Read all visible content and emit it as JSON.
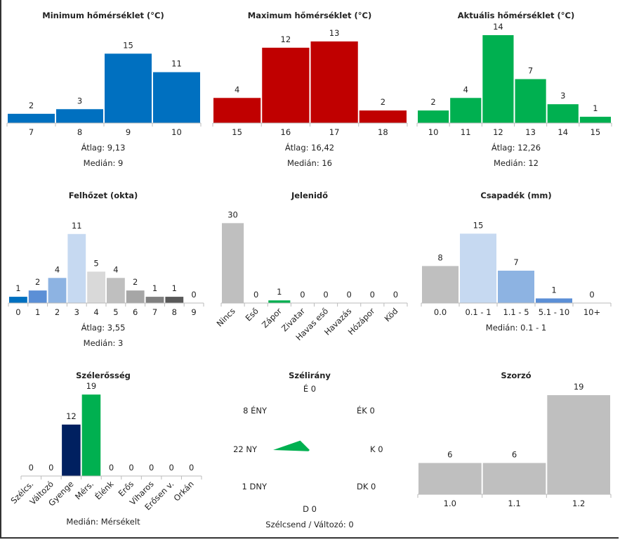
{
  "chart_data": [
    {
      "type": "bar",
      "title": "Minimum hőmérséklet (°C)",
      "categories": [
        "7",
        "8",
        "9",
        "10"
      ],
      "values": [
        2,
        3,
        15,
        11
      ],
      "colors": [
        "#0070c0",
        "#0070c0",
        "#0070c0",
        "#0070c0"
      ],
      "ylim": [
        0,
        19
      ],
      "stats": [
        "Átlag:  9,13",
        "Medián:  9"
      ]
    },
    {
      "type": "bar",
      "title": "Maximum hőmérséklet (°C)",
      "categories": [
        "15",
        "16",
        "17",
        "18"
      ],
      "values": [
        4,
        12,
        13,
        2
      ],
      "colors": [
        "#c00000",
        "#c00000",
        "#c00000",
        "#c00000"
      ],
      "ylim": [
        0,
        14
      ],
      "stats": [
        "Átlag:  16,42",
        "Medián:  16"
      ]
    },
    {
      "type": "bar",
      "title": "Aktuális hőmérséklet (°C)",
      "categories": [
        "10",
        "11",
        "12",
        "13",
        "14",
        "15"
      ],
      "values": [
        2,
        4,
        14,
        7,
        3,
        1
      ],
      "colors": [
        "#00b050",
        "#00b050",
        "#00b050",
        "#00b050",
        "#00b050",
        "#00b050"
      ],
      "ylim": [
        0,
        14
      ],
      "stats": [
        "Átlag:  12,26",
        "Medián:  12"
      ]
    },
    {
      "type": "bar",
      "title": "Felhőzet (okta)",
      "categories": [
        "0",
        "1",
        "2",
        "3",
        "4",
        "5",
        "6",
        "7",
        "8",
        "9"
      ],
      "values": [
        1,
        2,
        4,
        11,
        5,
        4,
        2,
        1,
        1,
        0
      ],
      "colors": [
        "#0070c0",
        "#5b8fd6",
        "#8db3e2",
        "#c6d9f1",
        "#d9d9d9",
        "#bfbfbf",
        "#a6a6a6",
        "#808080",
        "#595959",
        "#404040"
      ],
      "ylim": [
        0,
        14
      ],
      "stats": [
        "Átlag:  3,55",
        "Medián:  3"
      ]
    },
    {
      "type": "bar",
      "title": "Jelenidő",
      "categories": [
        "Nincs",
        "Eső",
        "Zápor",
        "Zivatar",
        "Havas eső",
        "Havazás",
        "Hózápor",
        "Köd"
      ],
      "values": [
        30,
        0,
        1,
        0,
        0,
        0,
        0,
        0
      ],
      "colors": [
        "#bfbfbf",
        "#bfbfbf",
        "#00b050",
        "#bfbfbf",
        "#bfbfbf",
        "#bfbfbf",
        "#bfbfbf",
        "#bfbfbf"
      ],
      "ylim": [
        0,
        33
      ],
      "rotated": true,
      "stats": []
    },
    {
      "type": "bar",
      "title": "Csapadék (mm)",
      "categories": [
        "0.0",
        "0.1 - 1",
        "1.1 - 5",
        "5.1 - 10",
        "10+"
      ],
      "values": [
        8,
        15,
        7,
        1,
        0
      ],
      "colors": [
        "#bfbfbf",
        "#c6d9f1",
        "#8db3e2",
        "#5b8fd6",
        "#0070c0"
      ],
      "ylim": [
        0,
        19
      ],
      "stats": [
        "Medián:  0.1 - 1"
      ]
    },
    {
      "type": "bar",
      "title": "Szélerősség",
      "categories": [
        "Szélcs.",
        "Változó",
        "Gyenge",
        "Mérs.",
        "Élénk",
        "Erős",
        "Viharos",
        "Erősen v.",
        "Orkán"
      ],
      "values": [
        0,
        0,
        12,
        19,
        0,
        0,
        0,
        0,
        0
      ],
      "colors": [
        "#bfbfbf",
        "#bfbfbf",
        "#002060",
        "#00b050",
        "#bfbfbf",
        "#bfbfbf",
        "#bfbfbf",
        "#bfbfbf",
        "#bfbfbf"
      ],
      "ylim": [
        0,
        20.5
      ],
      "rotated": true,
      "stats": [
        "Medián:  Mérsékelt"
      ]
    },
    {
      "type": "radar",
      "title": "Szélirány",
      "directions": [
        {
          "name": "É",
          "value": 0,
          "label": "É 0"
        },
        {
          "name": "ÉK",
          "value": 0,
          "label": "ÉK 0"
        },
        {
          "name": "K",
          "value": 0,
          "label": "K 0"
        },
        {
          "name": "DK",
          "value": 0,
          "label": "DK 0"
        },
        {
          "name": "D",
          "value": 0,
          "label": "D 0"
        },
        {
          "name": "DNY",
          "value": 1,
          "label": "1  DNY"
        },
        {
          "name": "NY",
          "value": 22,
          "label": "22  NY"
        },
        {
          "name": "ÉNY",
          "value": 8,
          "label": "8 ÉNY"
        }
      ],
      "color": "#00b050",
      "footer": "Szélcsend / Változó: 0"
    },
    {
      "type": "bar",
      "title": "Szorzó",
      "categories": [
        "1.0",
        "1.1",
        "1.2"
      ],
      "values": [
        6,
        6,
        19
      ],
      "colors": [
        "#bfbfbf",
        "#bfbfbf",
        "#bfbfbf"
      ],
      "ylim": [
        0,
        19
      ],
      "stats": []
    }
  ]
}
